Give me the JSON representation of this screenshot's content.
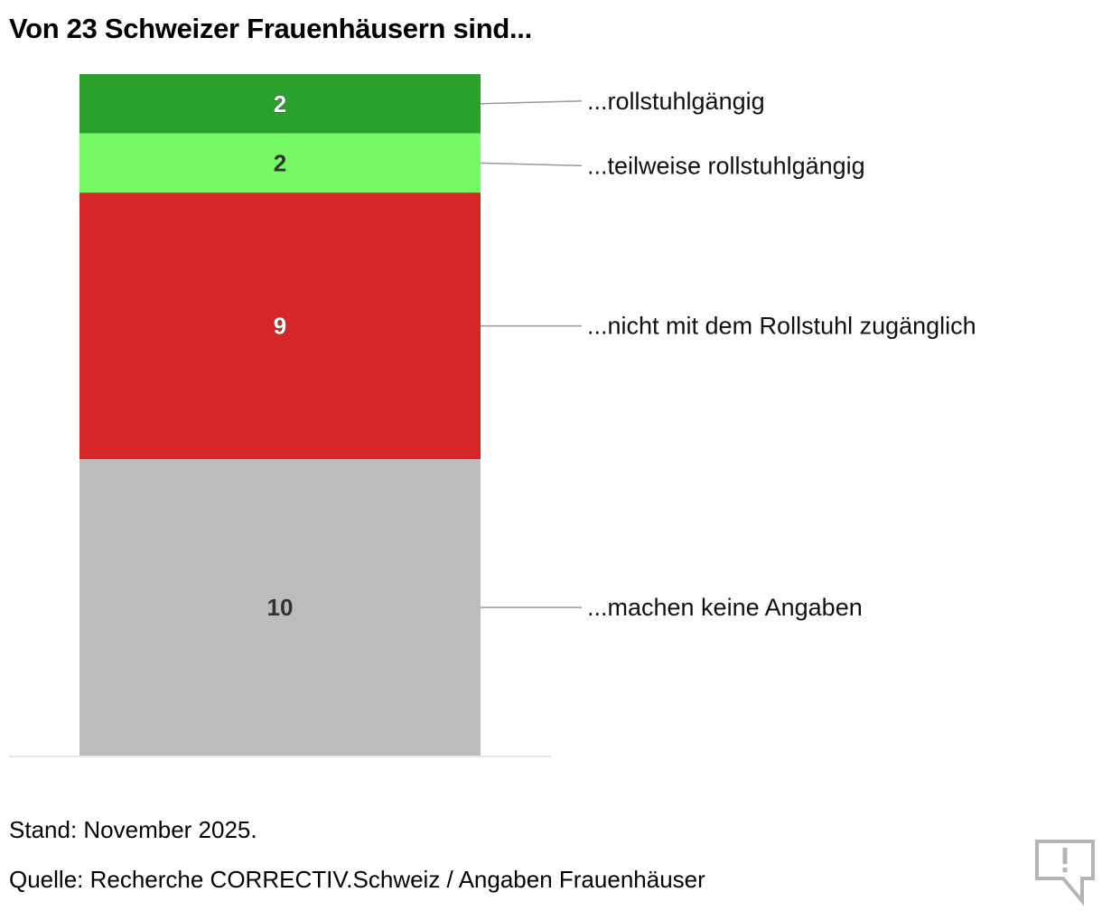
{
  "chart_data": {
    "type": "bar",
    "stacked": true,
    "title": "Von 23 Schweizer Frauenhäusern sind...",
    "total": 23,
    "segments": [
      {
        "label": "...rollstuhlgängig",
        "value": 2,
        "value_label": "2",
        "color": "#2ca02c",
        "text_color": "#ffffff"
      },
      {
        "label": "...teilweise rollstuhlgängig",
        "value": 2,
        "value_label": "2",
        "color": "#77f966",
        "text_color": "#333333"
      },
      {
        "label": "...nicht mit dem Rollstuhl zugänglich",
        "value": 9,
        "value_label": "9",
        "color": "#d62728",
        "text_color": "#ffffff"
      },
      {
        "label": "...machen keine Angaben",
        "value": 10,
        "value_label": "10",
        "color": "#bcbcbc",
        "text_color": "#333333"
      }
    ]
  },
  "footer": {
    "stand": "Stand: November 2025.",
    "quelle": "Quelle: Recherche CORRECTIV.Schweiz / Angaben Frauenhäuser"
  },
  "report_icon": "speech-bubble-exclamation-icon"
}
